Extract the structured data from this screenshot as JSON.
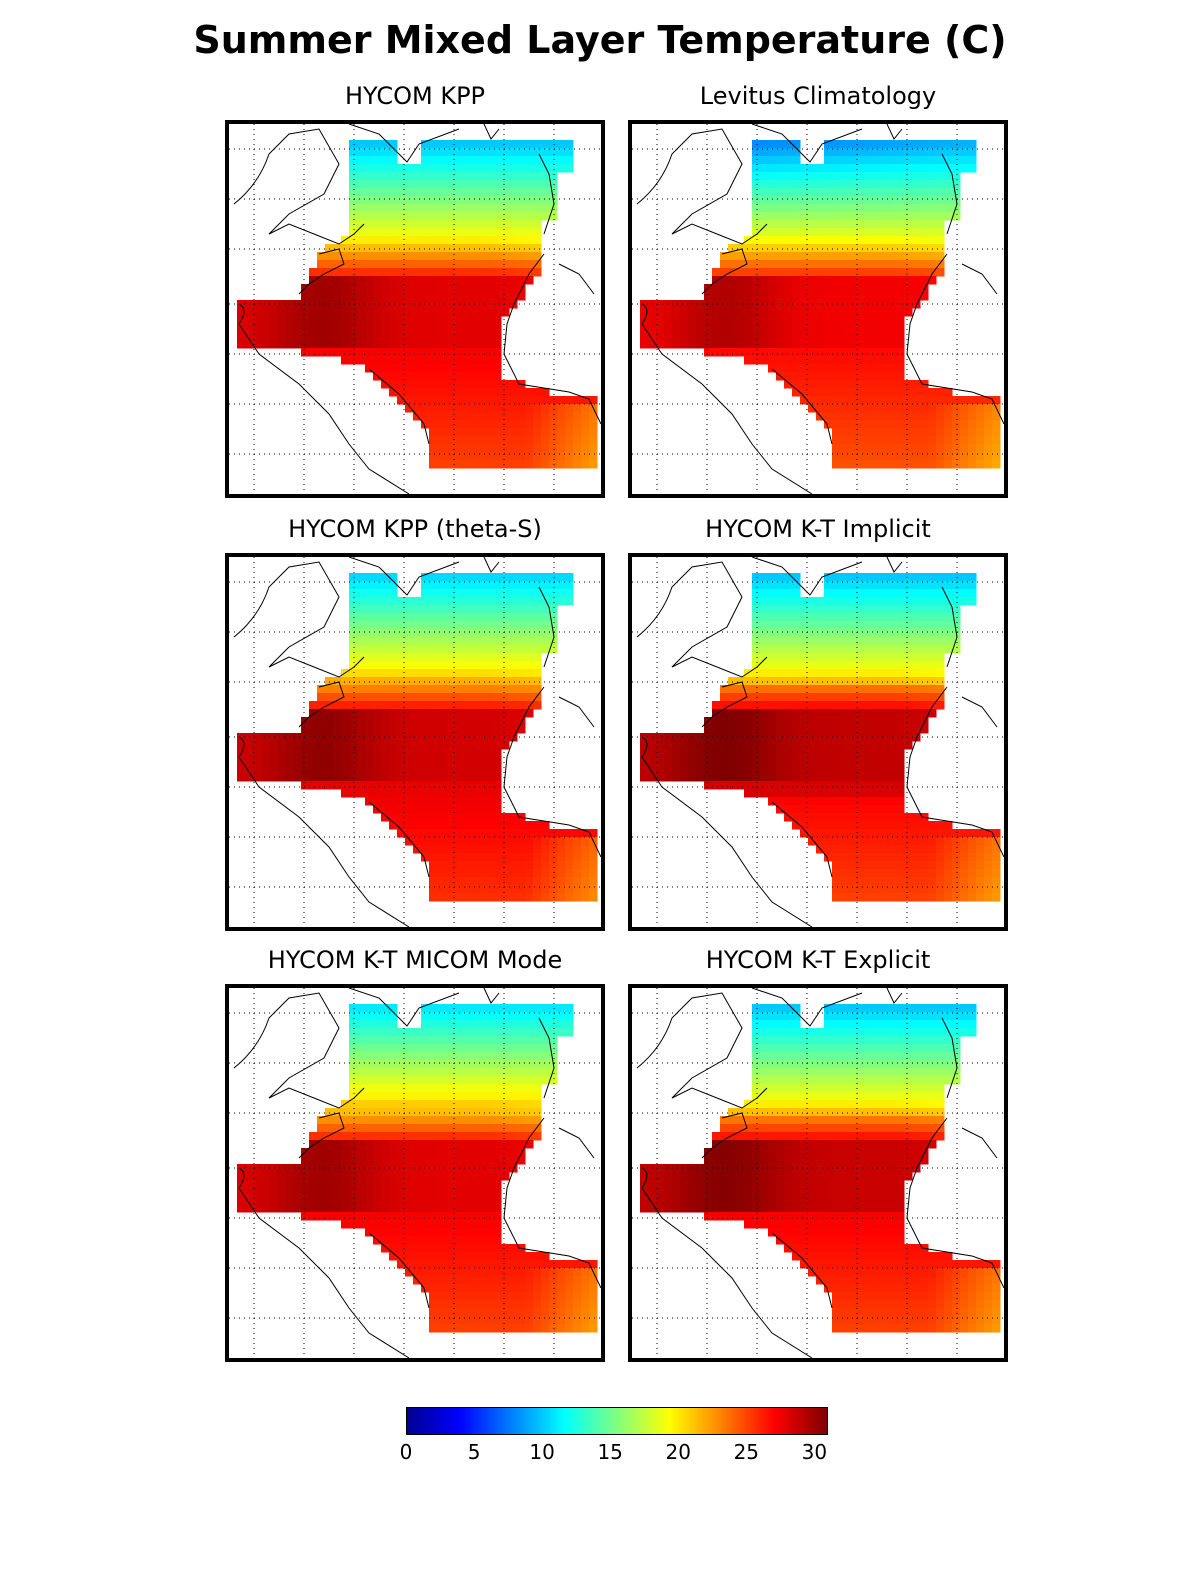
{
  "figure": {
    "title": "Summer Mixed Layer Temperature (C)"
  },
  "panels": [
    {
      "title": "HYCOM KPP",
      "variant": "kpp"
    },
    {
      "title": "Levitus Climatology",
      "variant": "levitus"
    },
    {
      "title": "HYCOM KPP (theta-S)",
      "variant": "kpp_thetas"
    },
    {
      "title": "HYCOM K-T Implicit",
      "variant": "kt_implicit"
    },
    {
      "title": "HYCOM K-T MICOM Mode",
      "variant": "kt_micom"
    },
    {
      "title": "HYCOM K-T Explicit",
      "variant": "kt_explicit"
    }
  ],
  "colorbar": {
    "min": 0,
    "max": 31,
    "tick_labels": [
      "0",
      "5",
      "10",
      "15",
      "20",
      "25",
      "30"
    ],
    "tick_values": [
      0,
      5,
      10,
      15,
      20,
      25,
      30
    ],
    "colormap": "jet",
    "colors": [
      "#00008f",
      "#0000ff",
      "#0080ff",
      "#00ffff",
      "#80ff80",
      "#ffff00",
      "#ff8000",
      "#ff0000",
      "#800000"
    ]
  },
  "map": {
    "region": "North Atlantic",
    "land_color": "#ffffff",
    "coastline_color": "#000000",
    "grid": "dotted"
  }
}
